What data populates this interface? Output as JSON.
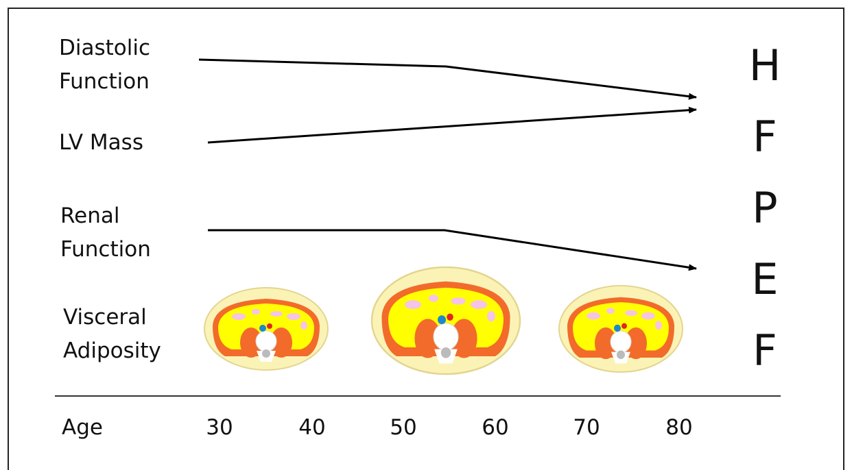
{
  "rows": [
    {
      "label": [
        "Diastolic",
        "Function"
      ]
    },
    {
      "label": [
        "LV Mass"
      ]
    },
    {
      "label": [
        "Renal",
        "Function"
      ]
    },
    {
      "label": [
        "Visceral",
        "Adiposity"
      ]
    }
  ],
  "outcome_letters": [
    "H",
    "F",
    "P",
    "E",
    "F"
  ],
  "axis": {
    "label": "Age",
    "ticks": [
      30,
      40,
      50,
      60,
      70,
      80
    ]
  }
}
